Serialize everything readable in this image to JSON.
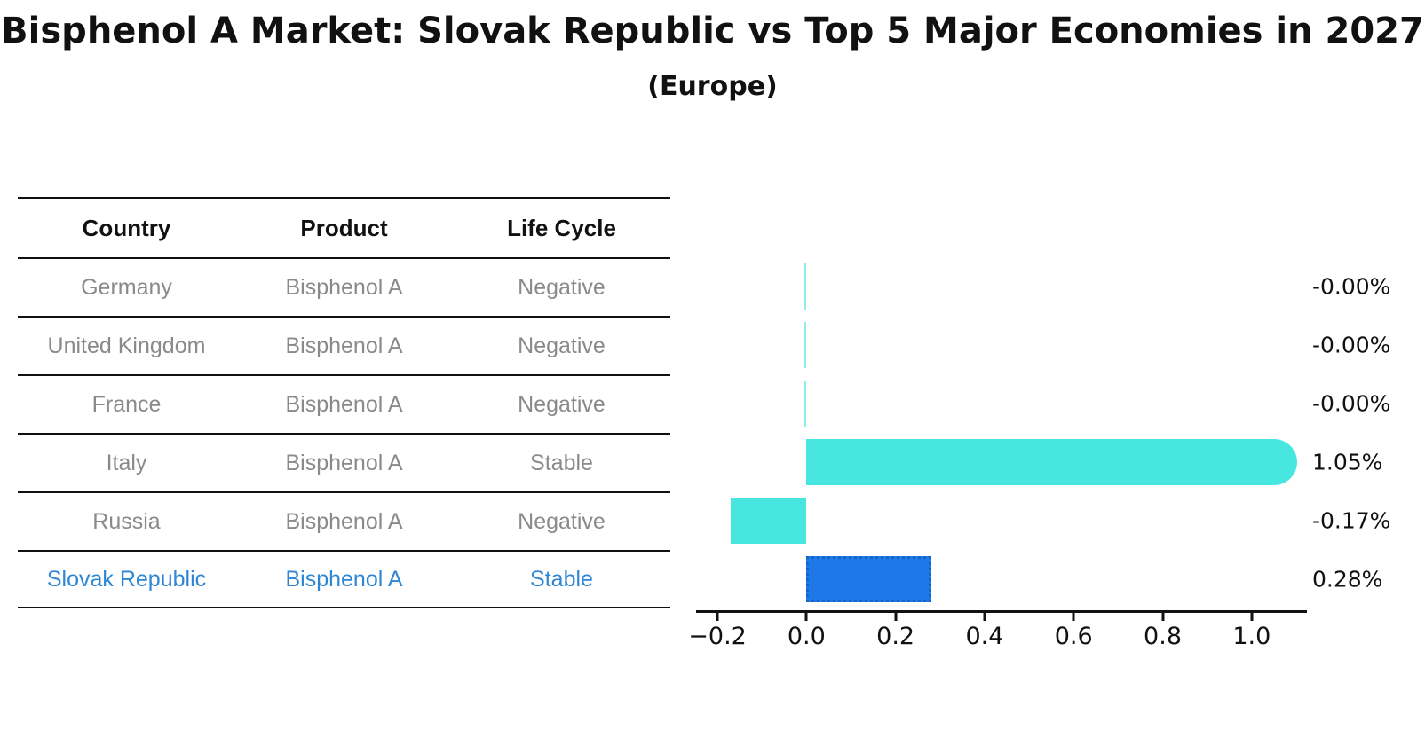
{
  "title": "Bisphenol A Market: Slovak Republic vs Top 5 Major Economies in 2027",
  "subtitle": "(Europe)",
  "table": {
    "headers": [
      "Country",
      "Product",
      "Life Cycle"
    ],
    "rows": [
      {
        "country": "Germany",
        "product": "Bisphenol A",
        "life_cycle": "Negative",
        "highlight": false
      },
      {
        "country": "United Kingdom",
        "product": "Bisphenol A",
        "life_cycle": "Negative",
        "highlight": false
      },
      {
        "country": "France",
        "product": "Bisphenol A",
        "life_cycle": "Negative",
        "highlight": false
      },
      {
        "country": "Italy",
        "product": "Bisphenol A",
        "life_cycle": "Stable",
        "highlight": false
      },
      {
        "country": "Russia",
        "product": "Bisphenol A",
        "life_cycle": "Negative",
        "highlight": false
      },
      {
        "country": "Slovak Republic",
        "product": "Bisphenol A",
        "life_cycle": "Stable",
        "highlight": true
      }
    ],
    "text_color": "#8a8a8a",
    "highlight_text_color": "#2e86d4"
  },
  "chart_data": {
    "type": "bar",
    "orientation": "horizontal",
    "title": "Bisphenol A Market: Slovak Republic vs Top 5 Major Economies in 2027 (Europe)",
    "categories": [
      "Germany",
      "United Kingdom",
      "France",
      "Italy",
      "Russia",
      "Slovak Republic"
    ],
    "values": [
      -0.0,
      -0.0,
      -0.0,
      1.05,
      -0.17,
      0.28
    ],
    "value_labels": [
      "-0.00%",
      "-0.00%",
      "-0.00%",
      "1.05%",
      "-0.17%",
      "0.28%"
    ],
    "xticks": [
      -0.2,
      0.0,
      0.2,
      0.4,
      0.6,
      0.8,
      1.0
    ],
    "xtick_labels": [
      "−0.2",
      "0.0",
      "0.2",
      "0.4",
      "0.6",
      "0.8",
      "1.0"
    ],
    "xlim": [
      -0.24,
      1.116
    ],
    "grid": false,
    "legend": false,
    "bar_color": "#47E7E0",
    "zero_bar_color": "#8FEDE8",
    "highlight_bar_color": "#1E78E8",
    "highlight_border_color": "#1464C8",
    "highlight_index": 5,
    "rounded_cap_index": 3
  }
}
